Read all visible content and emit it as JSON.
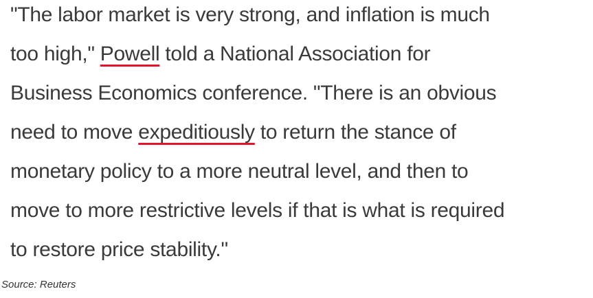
{
  "quote": {
    "lines": [
      [
        "\"The labor market is very strong, and inflation is much"
      ],
      [
        "too high,\" ",
        {
          "text": "Powell",
          "link": true
        },
        " told a National Association for"
      ],
      [
        "Business Economics conference. \"There is an obvious"
      ],
      [
        "need to move ",
        {
          "text": "expeditiously",
          "link": true
        },
        " to return the stance of"
      ],
      [
        "monetary policy to a more neutral level, and then to"
      ],
      [
        "move to more restrictive levels if that is what is required"
      ],
      [
        "to restore price stability.\""
      ]
    ]
  },
  "source": "Source: Reuters"
}
